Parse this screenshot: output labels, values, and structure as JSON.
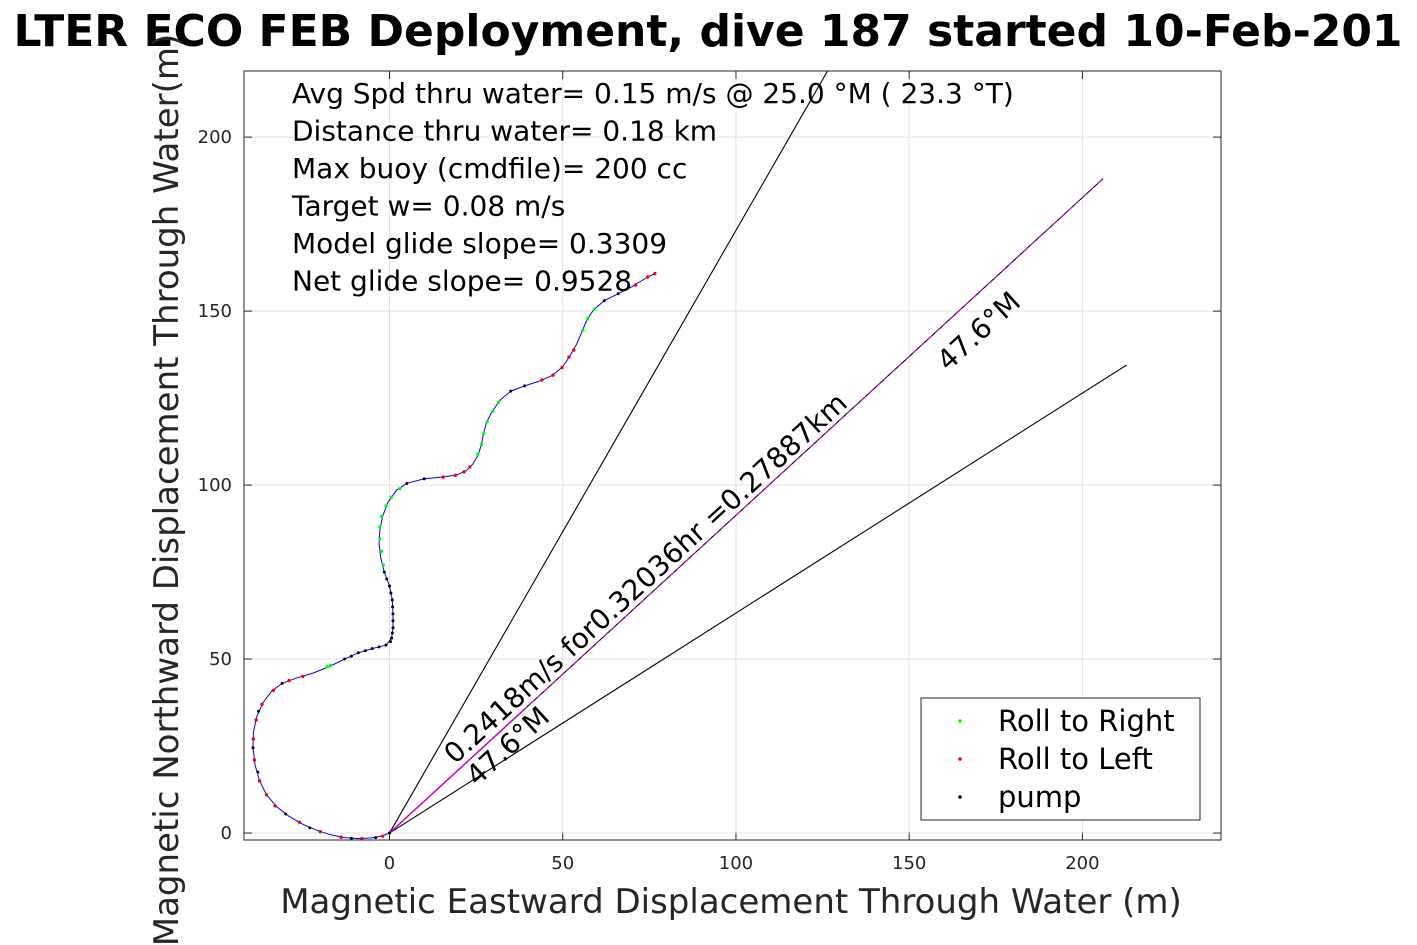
{
  "chart_data": {
    "type": "scatter",
    "title": "LTER ECO FEB Deployment, dive 187 started 10-Feb-201",
    "xlabel": "Magnetic Eastward Displacement Through Water (m)",
    "ylabel": "Magnetic Northward Displacement Through Water(m)",
    "xlim": [
      -42,
      240
    ],
    "ylim": [
      -2,
      219
    ],
    "xticks": [
      0,
      50,
      100,
      150,
      200
    ],
    "yticks": [
      0,
      50,
      100,
      150,
      200
    ],
    "grid": true,
    "legend_position": "bottom-right",
    "stats_lines": [
      "Avg Spd thru water=  0.15 m/s @  25.0 °M ( 23.3 °T)",
      "Distance thru water=  0.18 km",
      "Max buoy (cmdfile)= 200 cc",
      "Target w= 0.08 m/s",
      "Model glide slope= 0.3309",
      "Net glide slope= 0.9528"
    ],
    "annotations": {
      "current": "0.2418m/s for0.32036hr =0.27887km",
      "heading_near": "47.6°M",
      "heading_far": "47.6°M"
    },
    "series": [
      {
        "name": "Roll to Right",
        "color": "#00ff00",
        "marker": "dot"
      },
      {
        "name": "Roll to Left",
        "color": "#ff0000",
        "marker": "dot"
      },
      {
        "name": "pump",
        "color": "#000000",
        "marker": "dot"
      }
    ],
    "colors": {
      "track": "#0000ff",
      "current_vector": "#cc00cc",
      "cone": "#000000"
    },
    "track": [
      [
        0,
        0
      ],
      [
        -2,
        -0.8
      ],
      [
        -5,
        -1.4
      ],
      [
        -9,
        -1.6
      ],
      [
        -13,
        -1.3
      ],
      [
        -17,
        -0.5
      ],
      [
        -21,
        0.8
      ],
      [
        -25,
        2.5
      ],
      [
        -29,
        4.8
      ],
      [
        -32.5,
        7.5
      ],
      [
        -35.5,
        11
      ],
      [
        -37.5,
        15
      ],
      [
        -38.8,
        19.5
      ],
      [
        -39.4,
        24.5
      ],
      [
        -39.3,
        29
      ],
      [
        -38.3,
        33.5
      ],
      [
        -36.5,
        37.5
      ],
      [
        -34,
        40.8
      ],
      [
        -31,
        43
      ],
      [
        -27,
        44.5
      ],
      [
        -22,
        46
      ],
      [
        -17,
        48
      ],
      [
        -13,
        50
      ],
      [
        -9,
        51.8
      ],
      [
        -5,
        53
      ],
      [
        -1,
        54
      ],
      [
        0.6,
        56
      ],
      [
        1,
        59
      ],
      [
        1,
        63
      ],
      [
        0.8,
        67
      ],
      [
        0,
        71
      ],
      [
        -1.5,
        75
      ],
      [
        -2.5,
        79
      ],
      [
        -3,
        83
      ],
      [
        -2.8,
        87
      ],
      [
        -2,
        91
      ],
      [
        -0.5,
        95
      ],
      [
        2,
        98.5
      ],
      [
        5,
        100.5
      ],
      [
        10,
        101.8
      ],
      [
        15,
        102.3
      ],
      [
        19,
        102.8
      ],
      [
        22,
        104
      ],
      [
        24,
        106
      ],
      [
        25.5,
        108.5
      ],
      [
        26.5,
        111.5
      ],
      [
        27.2,
        115
      ],
      [
        28,
        118
      ],
      [
        29.5,
        121
      ],
      [
        32,
        124.5
      ],
      [
        35,
        127
      ],
      [
        39,
        128.5
      ],
      [
        43,
        129.8
      ],
      [
        47,
        131.5
      ],
      [
        50,
        134
      ],
      [
        52,
        137
      ],
      [
        54,
        140.5
      ],
      [
        55.5,
        144
      ],
      [
        57,
        147.5
      ],
      [
        59,
        150.5
      ],
      [
        62,
        153
      ],
      [
        66,
        155
      ],
      [
        70,
        157
      ],
      [
        74,
        159.5
      ],
      [
        76.6,
        160.8
      ]
    ],
    "roll_right": [
      [
        -1.8,
        77
      ],
      [
        -2.3,
        81
      ],
      [
        -2.8,
        84.5
      ],
      [
        -2.8,
        88
      ],
      [
        -2.3,
        91
      ],
      [
        -1,
        94
      ],
      [
        0.5,
        96.5
      ],
      [
        3,
        99
      ],
      [
        25.5,
        108.8
      ],
      [
        26.5,
        111.6
      ],
      [
        27.2,
        114.8
      ],
      [
        28.2,
        118.2
      ],
      [
        29.8,
        121.2
      ],
      [
        31.5,
        123.8
      ],
      [
        55.8,
        144.5
      ],
      [
        57.2,
        147.8
      ],
      [
        59.2,
        150.6
      ],
      [
        -18,
        47.8
      ],
      [
        -17,
        48.2
      ]
    ],
    "roll_left": [
      [
        -33,
        7.8
      ],
      [
        -35.5,
        11
      ],
      [
        -37.5,
        15
      ],
      [
        -39,
        21
      ],
      [
        -39.3,
        27
      ],
      [
        -38.5,
        32.5
      ],
      [
        -36.8,
        37
      ],
      [
        -33.5,
        41
      ],
      [
        -29,
        43.8
      ],
      [
        -25,
        45
      ],
      [
        -2,
        -0.9
      ],
      [
        -8,
        -1.6
      ],
      [
        -14,
        -1.2
      ],
      [
        -20,
        0.4
      ],
      [
        -26,
        3.1
      ],
      [
        15.5,
        102.3
      ],
      [
        19,
        102.8
      ],
      [
        21.5,
        103.8
      ],
      [
        23.2,
        105.2
      ],
      [
        44,
        130.2
      ],
      [
        47.2,
        131.6
      ],
      [
        49.8,
        133.8
      ],
      [
        51.8,
        136.8
      ],
      [
        53.2,
        138.8
      ],
      [
        71,
        157.5
      ],
      [
        74.5,
        159.8
      ],
      [
        76.6,
        160.8
      ]
    ],
    "pump": [
      [
        0,
        0
      ],
      [
        -4,
        -1.3
      ],
      [
        -11,
        -1.5
      ],
      [
        -23,
        1.5
      ],
      [
        -30,
        5.5
      ],
      [
        -38,
        17.5
      ],
      [
        -39.4,
        24.5
      ],
      [
        -37.8,
        35
      ],
      [
        -31,
        43
      ],
      [
        -13,
        50
      ],
      [
        -11,
        50.8
      ],
      [
        -9,
        51.8
      ],
      [
        -7,
        52.4
      ],
      [
        -5,
        53
      ],
      [
        -3,
        53.5
      ],
      [
        -1,
        54
      ],
      [
        0.3,
        55
      ],
      [
        0.6,
        56
      ],
      [
        0.8,
        57.5
      ],
      [
        1,
        59
      ],
      [
        1,
        61
      ],
      [
        1,
        63
      ],
      [
        0.9,
        65
      ],
      [
        0.8,
        67
      ],
      [
        0.4,
        69
      ],
      [
        0,
        71
      ],
      [
        -0.8,
        73
      ],
      [
        -1.5,
        75
      ],
      [
        5,
        100.5
      ],
      [
        10,
        101.8
      ],
      [
        35,
        127
      ],
      [
        39,
        128.5
      ],
      [
        62,
        153
      ],
      [
        66,
        155
      ]
    ],
    "current_vector": {
      "bearing_deg": 47.6,
      "length_m": 278.87
    },
    "cone_lines": [
      {
        "bearing_deg": 30.0,
        "length_m": 271.9
      },
      {
        "bearing_deg": 57.7,
        "length_m": 251.7
      }
    ],
    "short_vector": {
      "bearing_deg": 47.6,
      "length_m": 53
    }
  }
}
